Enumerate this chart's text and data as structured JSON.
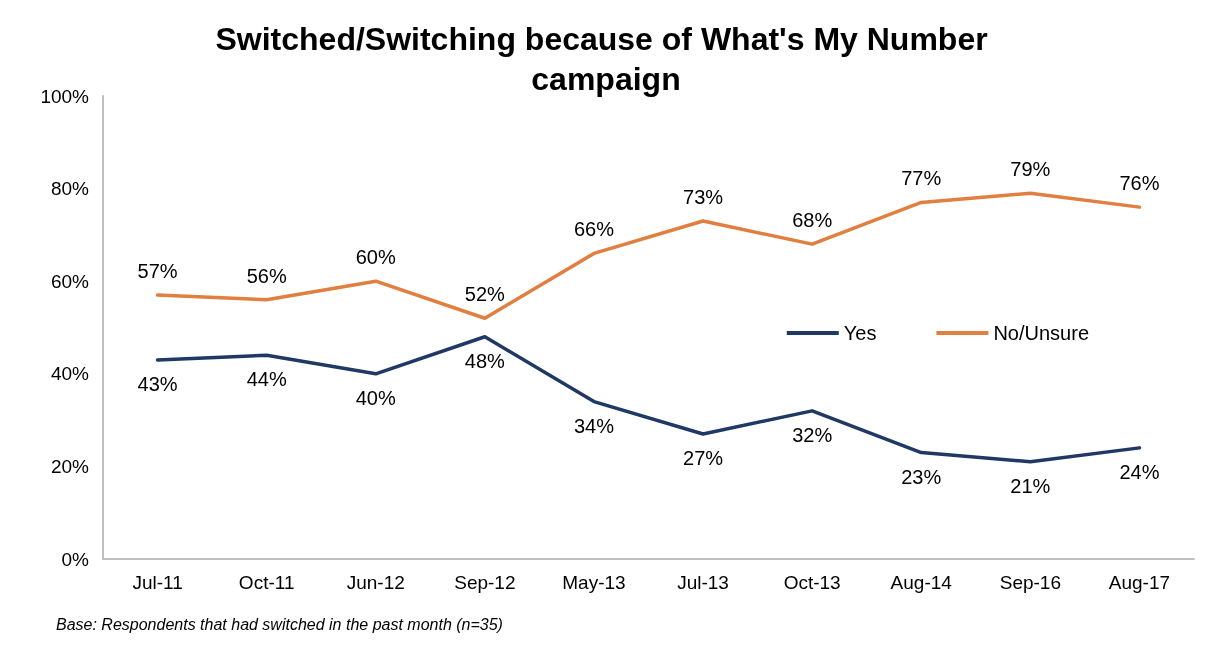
{
  "chart_data": {
    "type": "line",
    "title": "Switched/Switching because of What's My Number campaign",
    "categories": [
      "Jul-11",
      "Oct-11",
      "Jun-12",
      "Sep-12",
      "May-13",
      "Jul-13",
      "Oct-13",
      "Aug-14",
      "Sep-16",
      "Aug-17"
    ],
    "series": [
      {
        "name": "Yes",
        "color": "#1f3864",
        "values": [
          43,
          44,
          40,
          48,
          34,
          27,
          32,
          23,
          21,
          24
        ],
        "value_labels": [
          "43%",
          "44%",
          "40%",
          "48%",
          "34%",
          "27%",
          "32%",
          "23%",
          "21%",
          "24%"
        ]
      },
      {
        "name": "No/Unsure",
        "color": "#e07f3f",
        "values": [
          57,
          56,
          60,
          52,
          66,
          73,
          68,
          77,
          79,
          76
        ],
        "value_labels": [
          "57%",
          "56%",
          "60%",
          "52%",
          "66%",
          "73%",
          "68%",
          "77%",
          "79%",
          "76%"
        ]
      }
    ],
    "ylim": [
      0,
      100
    ],
    "yticks": [
      {
        "value": 0,
        "label": "0%"
      },
      {
        "value": 20,
        "label": "20%"
      },
      {
        "value": 40,
        "label": "40%"
      },
      {
        "value": 60,
        "label": "60%"
      },
      {
        "value": 80,
        "label": "80%"
      },
      {
        "value": 100,
        "label": "100%"
      }
    ],
    "grid": false,
    "legend": "right",
    "marker": "none",
    "line_style": "solid",
    "annotations": [
      "Base: Respondents that had switched in the past month (n=35)"
    ]
  }
}
